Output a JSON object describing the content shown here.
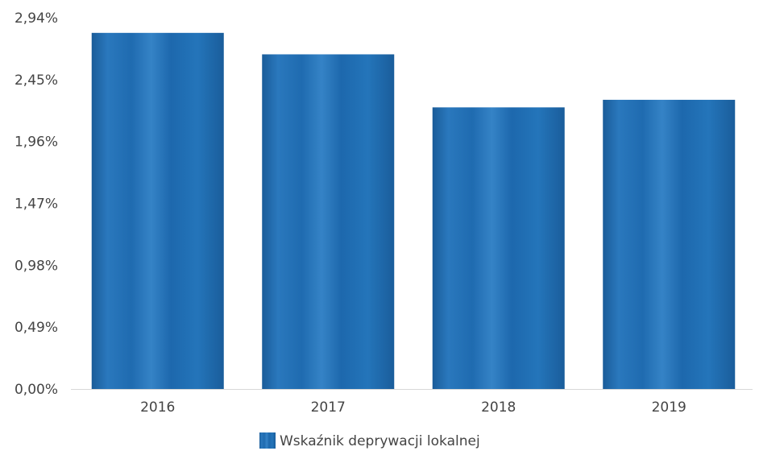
{
  "chart_data": {
    "type": "bar",
    "categories": [
      "2016",
      "2017",
      "2018",
      "2019"
    ],
    "series": [
      {
        "name": "Wskaźnik deprywacji lokalnej",
        "values": [
          2.82,
          2.65,
          2.23,
          2.29
        ]
      }
    ],
    "y_ticks": [
      "0,00%",
      "0,49%",
      "0,98%",
      "1,47%",
      "1,96%",
      "2,45%",
      "2,94%"
    ],
    "ylim": [
      0,
      2.94
    ],
    "grid": false,
    "legend_position": "bottom-center",
    "bar_color": "#1f6fb5"
  }
}
